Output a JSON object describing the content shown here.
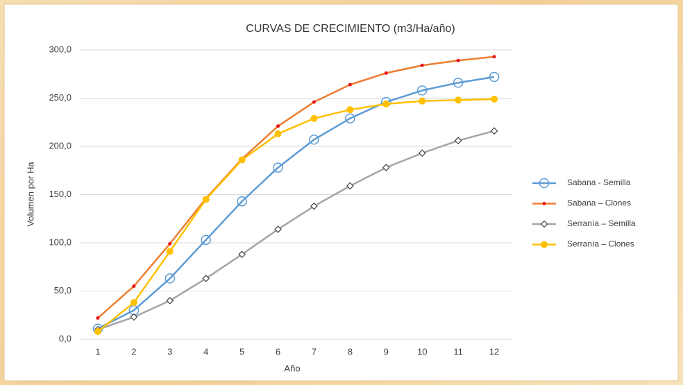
{
  "chart_data": {
    "type": "line",
    "title": "CURVAS DE CRECIMIENTO (m3/Ha/año)",
    "x_label": "Año",
    "y_label": "Volumen por Ha",
    "categories": [
      "1",
      "2",
      "3",
      "4",
      "5",
      "6",
      "7",
      "8",
      "9",
      "10",
      "11",
      "12"
    ],
    "ylim": [
      0,
      300
    ],
    "yticks": [
      {
        "value": 0,
        "label": "0,0"
      },
      {
        "value": 50,
        "label": "50,0"
      },
      {
        "value": 100,
        "label": "100,0"
      },
      {
        "value": 150,
        "label": "150,0"
      },
      {
        "value": 200,
        "label": "200,0"
      },
      {
        "value": 250,
        "label": "250,0"
      },
      {
        "value": 300,
        "label": "300,0"
      }
    ],
    "grid": true,
    "legend": "right",
    "series": [
      {
        "name": "Sabana - Semilla",
        "color": "#5b9bd5",
        "marker": "circle-open",
        "marker_color": "#5b9bd5",
        "values": [
          11,
          30,
          63,
          103,
          143,
          178,
          207,
          229,
          246,
          258,
          266,
          272
        ]
      },
      {
        "name": "Sabana – Clones",
        "color": "#ed7d31",
        "marker": "dot",
        "marker_color": "#e8121a",
        "values": [
          22,
          55,
          99,
          146,
          187,
          221,
          246,
          264,
          276,
          284,
          289,
          293
        ]
      },
      {
        "name": "Serranía – Semilla",
        "color": "#a5a5a5",
        "marker": "diamond",
        "marker_color": "#404040",
        "values": [
          10,
          23,
          40,
          63,
          88,
          114,
          138,
          159,
          178,
          193,
          206,
          216
        ]
      },
      {
        "name": "Serranía – Clones",
        "color": "#ffc000",
        "marker": "circle",
        "marker_color": "#ffc000",
        "values": [
          8,
          38,
          91,
          145,
          186,
          213,
          229,
          238,
          244,
          247,
          248,
          249
        ]
      }
    ]
  }
}
